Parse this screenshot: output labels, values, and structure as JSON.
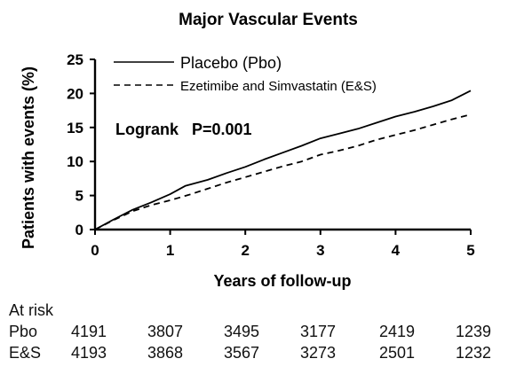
{
  "chart_data": {
    "type": "line",
    "title": "Major Vascular Events",
    "xlabel": "Years of follow-up",
    "ylabel": "Patients with events (%)",
    "xlim": [
      0,
      5
    ],
    "ylim": [
      0,
      25
    ],
    "xticks": [
      0,
      1,
      2,
      3,
      4,
      5
    ],
    "yticks": [
      0,
      5,
      10,
      15,
      20,
      25
    ],
    "grid": false,
    "legend_position": "top-left",
    "annotation": "Logrank   P=0.001",
    "series": [
      {
        "name": "Placebo (Pbo)",
        "style": "solid",
        "x": [
          0,
          0.25,
          0.5,
          0.75,
          1.0,
          1.2,
          1.5,
          1.75,
          2.0,
          2.25,
          2.5,
          2.75,
          3.0,
          3.25,
          3.5,
          3.75,
          4.0,
          4.25,
          4.5,
          4.75,
          5.0
        ],
        "y": [
          0,
          1.5,
          2.9,
          4.0,
          5.2,
          6.4,
          7.3,
          8.3,
          9.2,
          10.3,
          11.3,
          12.3,
          13.4,
          14.1,
          14.8,
          15.7,
          16.6,
          17.3,
          18.1,
          19.0,
          20.4
        ]
      },
      {
        "name": "Ezetimibe and Simvastatin (E&S)",
        "style": "dashed",
        "x": [
          0,
          0.25,
          0.5,
          0.75,
          1.0,
          1.25,
          1.5,
          1.75,
          2.0,
          2.25,
          2.5,
          2.75,
          3.0,
          3.25,
          3.5,
          3.75,
          4.0,
          4.25,
          4.5,
          4.75,
          5.0
        ],
        "y": [
          0,
          1.4,
          2.7,
          3.6,
          4.3,
          5.1,
          6.0,
          6.9,
          7.7,
          8.5,
          9.3,
          10.0,
          11.0,
          11.6,
          12.3,
          13.2,
          13.9,
          14.6,
          15.4,
          16.2,
          16.9
        ]
      }
    ]
  },
  "at_risk": {
    "title": "At risk",
    "rows": [
      {
        "label": "Pbo",
        "values": [
          "4191",
          "3807",
          "3495",
          "3177",
          "2419",
          "1239"
        ]
      },
      {
        "label": "E&S",
        "values": [
          "4193",
          "3868",
          "3567",
          "3273",
          "2501",
          "1232"
        ]
      }
    ]
  }
}
